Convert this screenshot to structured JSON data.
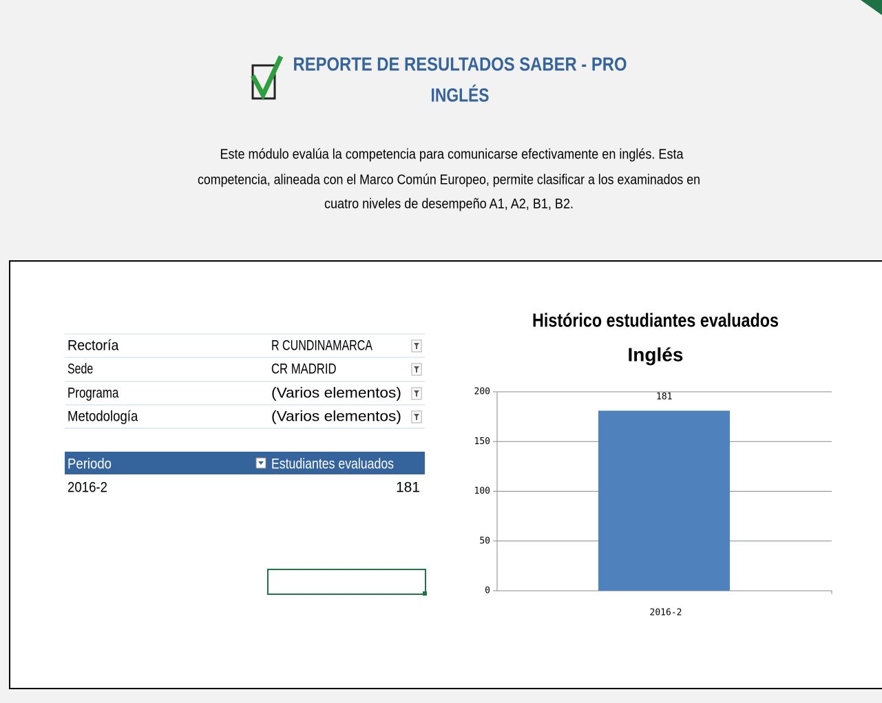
{
  "header": {
    "title": "REPORTE DE RESULTADOS SABER - PRO",
    "subtitle": "INGLÉS",
    "description": [
      "Este módulo evalúa la competencia para comunicarse efectivamente en inglés. Esta",
      "competencia, alineada con el Marco Común Europeo, permite clasificar a los examinados en",
      "cuatro niveles de desempeño A1, A2, B1, B2."
    ]
  },
  "filters": [
    {
      "label": "Rectoría",
      "value": "R CUNDINAMARCA"
    },
    {
      "label": "Sede",
      "value": "CR MADRID"
    },
    {
      "label": "Programa",
      "value": "(Varios elementos)"
    },
    {
      "label": "Metodología",
      "value": "(Varios elementos)"
    }
  ],
  "table": {
    "headers": [
      "Periodo",
      "Estudiantes evaluados"
    ],
    "rows": [
      [
        "2016-2",
        181
      ]
    ]
  },
  "chart_data": {
    "type": "bar",
    "title": "Histórico estudiantes evaluados",
    "subtitle": "Inglés",
    "categories": [
      "2016-2"
    ],
    "values": [
      181
    ],
    "color": "#4f81bd",
    "ylim": [
      0,
      200
    ],
    "yticks": [
      0,
      50,
      100,
      150,
      200
    ],
    "grid": true
  }
}
